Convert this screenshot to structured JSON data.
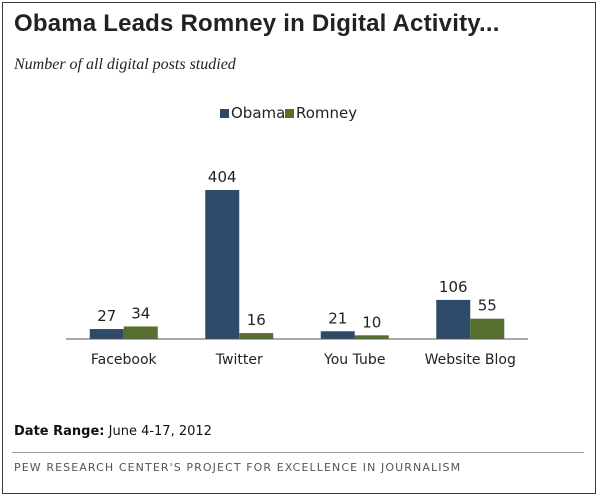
{
  "header": {
    "title": "Obama Leads Romney in Digital Activity...",
    "subtitle": "Number of all digital posts studied"
  },
  "colors": {
    "obama": "#2e4a6b",
    "romney": "#566f2e",
    "axis": "#555555",
    "text": "#222222"
  },
  "chart_data": {
    "type": "bar",
    "title": "Obama Leads Romney in Digital Activity...",
    "subtitle": "Number of all digital posts studied",
    "categories": [
      "Facebook",
      "Twitter",
      "You Tube",
      "Website Blog"
    ],
    "series": [
      {
        "name": "Obama",
        "values": [
          27,
          404,
          21,
          106
        ]
      },
      {
        "name": "Romney",
        "values": [
          34,
          16,
          10,
          55
        ]
      }
    ],
    "xlabel": "",
    "ylabel": "",
    "ylim": [
      0,
      404
    ],
    "grid": false,
    "legend_position": "top-center",
    "data_labels": true
  },
  "footer": {
    "date_label": "Date Range:",
    "date_value": "June 4-17, 2012",
    "source": "PEW RESEARCH CENTER'S PROJECT FOR EXCELLENCE IN JOURNALISM"
  }
}
